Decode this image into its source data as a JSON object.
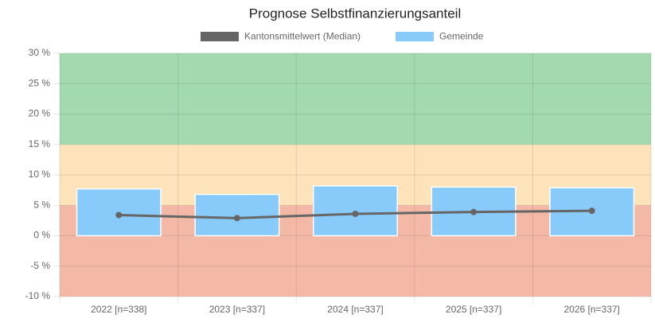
{
  "chart_data": {
    "type": "bar",
    "title": "Prognose Selbstfinanzierungsanteil",
    "categories": [
      "2022 [n=338]",
      "2023 [n=337]",
      "2024 [n=337]",
      "2025 [n=337]",
      "2026 [n=337]"
    ],
    "series": [
      {
        "name": "Kantonsmittelwert (Median)",
        "type": "line",
        "color": "#666666",
        "values": [
          3.4,
          2.9,
          3.6,
          3.9,
          4.1
        ]
      },
      {
        "name": "Gemeinde",
        "type": "bar",
        "color": "#88caf9",
        "values": [
          7.7,
          6.8,
          8.2,
          8.0,
          7.9
        ]
      }
    ],
    "bands": [
      {
        "from": 15,
        "to": 30,
        "color": "#a3d9ae"
      },
      {
        "from": 5,
        "to": 15,
        "color": "#fce3b9"
      },
      {
        "from": -10,
        "to": 5,
        "color": "#f4b9a6"
      }
    ],
    "ylim": [
      -10,
      30
    ],
    "yticks": [
      {
        "value": -10,
        "label": "-10 %"
      },
      {
        "value": -5,
        "label": "-5 %"
      },
      {
        "value": 0,
        "label": "0 %"
      },
      {
        "value": 5,
        "label": "5 %"
      },
      {
        "value": 10,
        "label": "10 %"
      },
      {
        "value": 15,
        "label": "15 %"
      },
      {
        "value": 20,
        "label": "20 %"
      },
      {
        "value": 25,
        "label": "25 %"
      },
      {
        "value": 30,
        "label": "30 %"
      }
    ],
    "grid": true
  }
}
